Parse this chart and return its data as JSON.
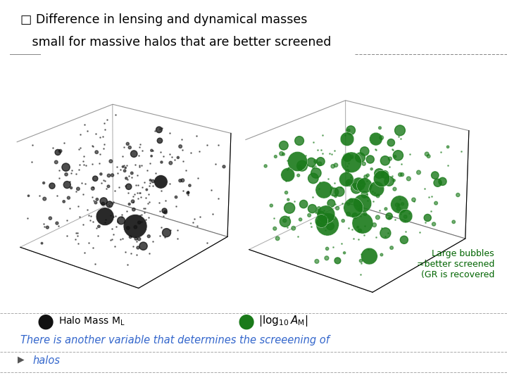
{
  "title_line1": "□ Difference in lensing and dynamical masses",
  "title_line2": "   small for massive halos that are better screened",
  "annotation": "Large bubbles\n=better screened\n(GR is recovered",
  "bottom_text1": "There is another variable that determines the screeening of",
  "bottom_text2": "halos",
  "bg_color": "#ffffff",
  "title_color": "#000000",
  "annotation_color": "#006400",
  "bottom_text_color": "#3366cc",
  "black_bubble_color": "#111111",
  "green_bubble_color": "#1a7a1a",
  "n_black_tiny": 200,
  "n_black_small": 60,
  "n_black_medium": 15,
  "n_black_large": 3,
  "n_green_tiny": 100,
  "n_green_small": 80,
  "n_green_medium": 40,
  "n_green_large": 20,
  "seed": 7
}
